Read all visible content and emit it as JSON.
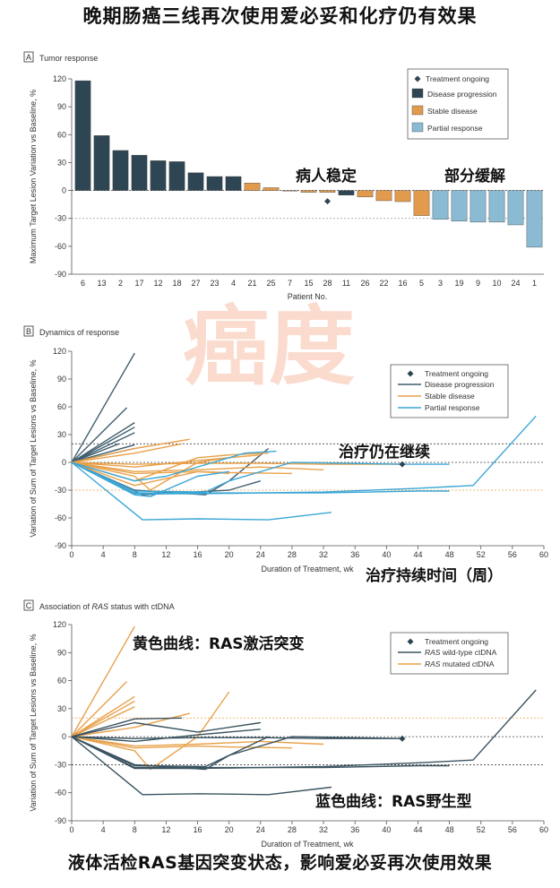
{
  "title": "晚期肠癌三线再次使用爱必妥和化疗仍有效果",
  "footer": "液体活检RAS基因突变状态，影响爱必妥再次使用效果",
  "watermark": "癌度",
  "colors": {
    "progression": "#2e4653",
    "stable": "#e29a4c",
    "partial": "#8bbad3",
    "line_progression": "#3f5e6e",
    "line_stable": "#e8a14a",
    "line_partial": "#3aa6d6",
    "line_wild": "#3a5360",
    "line_mutated": "#e8a14a",
    "marker": "#2e4653"
  },
  "panels": {
    "a": {
      "letter": "A",
      "title": "Tumor response"
    },
    "b": {
      "letter": "B",
      "title": "Dynamics of response"
    },
    "c": {
      "letter": "C",
      "title_parts": [
        "Association of ",
        "RAS",
        " status with ctDNA"
      ]
    }
  },
  "annotations": {
    "stable": "病人稳定",
    "partial": "部分缓解",
    "ongoing": "治疗仍在继续",
    "duration": "治疗持续时间（周）",
    "yellow": "黄色曲线：RAS激活突变",
    "blue": "蓝色曲线：RAS野生型"
  },
  "chart_data": [
    {
      "type": "bar",
      "panel": "A",
      "title": "Tumor response",
      "xlabel": "Patient No.",
      "ylabel": "Maximum Target Lesion Variation vs Baseline, %",
      "ylim": [
        -90,
        120
      ],
      "yticks": [
        120,
        90,
        60,
        30,
        0,
        -30,
        -60,
        -90
      ],
      "reference_lines": [
        20,
        -30
      ],
      "categories": [
        "6",
        "13",
        "2",
        "17",
        "12",
        "18",
        "27",
        "23",
        "4",
        "21",
        "25",
        "7",
        "15",
        "28",
        "11",
        "26",
        "22",
        "16",
        "5",
        "3",
        "19",
        "9",
        "10",
        "24",
        "1"
      ],
      "values": [
        118,
        59,
        43,
        38,
        32,
        31,
        19,
        15,
        15,
        8,
        3,
        0,
        -2,
        -2,
        -5,
        -7,
        -11,
        -12,
        -27,
        -31,
        -33,
        -34,
        -34,
        -37,
        -61
      ],
      "response": [
        "Disease progression",
        "Disease progression",
        "Disease progression",
        "Disease progression",
        "Disease progression",
        "Disease progression",
        "Disease progression",
        "Disease progression",
        "Disease progression",
        "Stable disease",
        "Stable disease",
        "Stable disease",
        "Stable disease",
        "Stable disease",
        "Disease progression",
        "Stable disease",
        "Stable disease",
        "Stable disease",
        "Stable disease",
        "Partial response",
        "Partial response",
        "Partial response",
        "Partial response",
        "Partial response",
        "Partial response"
      ],
      "ongoing_markers": [
        "28"
      ],
      "legend": [
        "Treatment ongoing",
        "Disease progression",
        "Stable disease",
        "Partial response"
      ],
      "legend_position": "top-right"
    },
    {
      "type": "line",
      "panel": "B",
      "title": "Dynamics of response",
      "xlabel": "Duration of Treatment, wk",
      "ylabel": "Variation of Sum of Target Lesions vs Baseline, %",
      "xlim": [
        0,
        60
      ],
      "ylim": [
        -90,
        120
      ],
      "xticks": [
        0,
        4,
        8,
        12,
        16,
        20,
        24,
        28,
        32,
        36,
        40,
        44,
        48,
        52,
        56,
        60
      ],
      "yticks": [
        120,
        90,
        60,
        30,
        0,
        -30,
        -60,
        -90
      ],
      "reference_lines": [
        20,
        0,
        -30
      ],
      "legend": [
        "Treatment ongoing",
        "Disease progression",
        "Stable disease",
        "Partial response"
      ],
      "legend_position": "top-right",
      "ongoing_marker": {
        "x": 42,
        "y": -2
      },
      "series": [
        {
          "group": "progression",
          "points": [
            [
              0,
              0
            ],
            [
              8,
              118
            ]
          ]
        },
        {
          "group": "progression",
          "points": [
            [
              0,
              0
            ],
            [
              7,
              59
            ]
          ]
        },
        {
          "group": "progression",
          "points": [
            [
              0,
              0
            ],
            [
              8,
              43
            ]
          ]
        },
        {
          "group": "progression",
          "points": [
            [
              0,
              0
            ],
            [
              8,
              38
            ]
          ]
        },
        {
          "group": "progression",
          "points": [
            [
              0,
              0
            ],
            [
              8,
              32
            ]
          ]
        },
        {
          "group": "progression",
          "points": [
            [
              0,
              0
            ],
            [
              6,
              20
            ]
          ]
        },
        {
          "group": "progression",
          "points": [
            [
              0,
              0
            ],
            [
              8,
              19
            ]
          ]
        },
        {
          "group": "progression",
          "points": [
            [
              0,
              0
            ],
            [
              8,
              15
            ]
          ]
        },
        {
          "group": "progression",
          "points": [
            [
              0,
              0
            ],
            [
              8,
              -30
            ],
            [
              17,
              -35
            ],
            [
              20,
              -20
            ],
            [
              25,
              15
            ]
          ]
        },
        {
          "group": "progression",
          "points": [
            [
              0,
              0
            ],
            [
              9,
              -35
            ],
            [
              20,
              -30
            ],
            [
              24,
              -20
            ]
          ]
        },
        {
          "group": "stable",
          "points": [
            [
              0,
              0
            ],
            [
              8,
              10
            ],
            [
              14,
              20
            ]
          ]
        },
        {
          "group": "stable",
          "points": [
            [
              0,
              0
            ],
            [
              8,
              15
            ],
            [
              15,
              25
            ]
          ]
        },
        {
          "group": "stable",
          "points": [
            [
              0,
              0
            ],
            [
              8,
              -5
            ],
            [
              16,
              2
            ],
            [
              24,
              8
            ]
          ]
        },
        {
          "group": "stable",
          "points": [
            [
              0,
              0
            ],
            [
              8,
              -10
            ],
            [
              16,
              -8
            ],
            [
              24,
              -5
            ],
            [
              32,
              -8
            ]
          ]
        },
        {
          "group": "stable",
          "points": [
            [
              0,
              0
            ],
            [
              8,
              -12
            ],
            [
              16,
              -10
            ],
            [
              20,
              -11
            ],
            [
              28,
              -12
            ]
          ]
        },
        {
          "group": "stable",
          "points": [
            [
              0,
              0
            ],
            [
              8,
              -2
            ],
            [
              16,
              -1
            ],
            [
              24,
              -1
            ],
            [
              32,
              -2
            ],
            [
              42,
              -2
            ]
          ]
        },
        {
          "group": "stable",
          "points": [
            [
              0,
              0
            ],
            [
              8,
              -20
            ],
            [
              16,
              5
            ],
            [
              20,
              8
            ],
            [
              25,
              10
            ]
          ]
        },
        {
          "group": "stable",
          "points": [
            [
              0,
              0
            ],
            [
              8,
              -15
            ],
            [
              10,
              -30
            ],
            [
              16,
              0
            ],
            [
              20,
              5
            ]
          ]
        },
        {
          "group": "stable",
          "points": [
            [
              0,
              0
            ],
            [
              8,
              -25
            ],
            [
              16,
              -10
            ],
            [
              20,
              -12
            ]
          ]
        },
        {
          "group": "partial",
          "points": [
            [
              0,
              0
            ],
            [
              8,
              -31
            ],
            [
              17,
              -32
            ],
            [
              20,
              -20
            ],
            [
              28,
              0
            ],
            [
              42,
              -2
            ],
            [
              48,
              -2
            ]
          ]
        },
        {
          "group": "partial",
          "points": [
            [
              0,
              0
            ],
            [
              8,
              -33
            ],
            [
              16,
              -33
            ],
            [
              24,
              -33
            ],
            [
              32,
              -33
            ],
            [
              44,
              -31
            ],
            [
              48,
              -31
            ]
          ]
        },
        {
          "group": "partial",
          "points": [
            [
              0,
              0
            ],
            [
              8,
              -34
            ],
            [
              16,
              -34
            ],
            [
              24,
              -33
            ],
            [
              32,
              -32
            ],
            [
              44,
              -28
            ],
            [
              51,
              -25
            ],
            [
              59,
              50
            ]
          ]
        },
        {
          "group": "partial",
          "points": [
            [
              0,
              0
            ],
            [
              8,
              -35
            ],
            [
              10,
              -37
            ],
            [
              16,
              -15
            ],
            [
              20,
              -10
            ]
          ]
        },
        {
          "group": "partial",
          "points": [
            [
              0,
              0
            ],
            [
              8,
              -20
            ],
            [
              12,
              -15
            ],
            [
              18,
              0
            ],
            [
              22,
              10
            ],
            [
              26,
              12
            ]
          ]
        },
        {
          "group": "partial",
          "points": [
            [
              0,
              0
            ],
            [
              9,
              -62
            ],
            [
              16,
              -61
            ],
            [
              25,
              -62
            ],
            [
              33,
              -54
            ]
          ]
        }
      ]
    },
    {
      "type": "line",
      "panel": "C",
      "title": "Association of RAS status with ctDNA",
      "xlabel": "Duration of Treatment, wk",
      "ylabel": "Variation of Sum of Target Lesions vs Baseline, %",
      "xlim": [
        0,
        60
      ],
      "ylim": [
        -90,
        120
      ],
      "xticks": [
        0,
        4,
        8,
        12,
        16,
        20,
        24,
        28,
        32,
        36,
        40,
        44,
        48,
        52,
        56,
        60
      ],
      "yticks": [
        120,
        90,
        60,
        30,
        0,
        -30,
        -60,
        -90
      ],
      "reference_lines": [
        20,
        0,
        -30
      ],
      "legend": [
        "Treatment ongoing",
        "RAS wild-type ctDNA",
        "RAS mutated ctDNA"
      ],
      "legend_position": "top-right",
      "ongoing_marker": {
        "x": 42,
        "y": -2
      },
      "series": [
        {
          "group": "mutated",
          "points": [
            [
              0,
              0
            ],
            [
              8,
              118
            ]
          ]
        },
        {
          "group": "mutated",
          "points": [
            [
              0,
              0
            ],
            [
              7,
              59
            ]
          ]
        },
        {
          "group": "mutated",
          "points": [
            [
              0,
              0
            ],
            [
              8,
              43
            ]
          ]
        },
        {
          "group": "mutated",
          "points": [
            [
              0,
              0
            ],
            [
              8,
              38
            ]
          ]
        },
        {
          "group": "mutated",
          "points": [
            [
              0,
              0
            ],
            [
              8,
              32
            ]
          ]
        },
        {
          "group": "mutated",
          "points": [
            [
              0,
              0
            ],
            [
              8,
              10
            ],
            [
              15,
              25
            ]
          ]
        },
        {
          "group": "mutated",
          "points": [
            [
              0,
              0
            ],
            [
              8,
              -15
            ],
            [
              10,
              -35
            ],
            [
              16,
              0
            ],
            [
              20,
              48
            ]
          ]
        },
        {
          "group": "mutated",
          "points": [
            [
              0,
              0
            ],
            [
              8,
              -10
            ],
            [
              16,
              -8
            ],
            [
              24,
              -5
            ],
            [
              32,
              -8
            ]
          ]
        },
        {
          "group": "mutated",
          "points": [
            [
              0,
              0
            ],
            [
              8,
              -12
            ],
            [
              16,
              -10
            ],
            [
              20,
              -11
            ],
            [
              28,
              -12
            ]
          ]
        },
        {
          "group": "wild",
          "points": [
            [
              0,
              0
            ],
            [
              8,
              19
            ],
            [
              14,
              20
            ]
          ]
        },
        {
          "group": "wild",
          "points": [
            [
              0,
              0
            ],
            [
              8,
              15
            ],
            [
              16,
              5
            ],
            [
              24,
              15
            ]
          ]
        },
        {
          "group": "wild",
          "points": [
            [
              0,
              0
            ],
            [
              8,
              -5
            ],
            [
              16,
              2
            ],
            [
              24,
              8
            ]
          ]
        },
        {
          "group": "wild",
          "points": [
            [
              0,
              0
            ],
            [
              8,
              -30
            ],
            [
              17,
              -35
            ],
            [
              20,
              -20
            ],
            [
              25,
              0
            ]
          ]
        },
        {
          "group": "wild",
          "points": [
            [
              0,
              0
            ],
            [
              8,
              -31
            ],
            [
              17,
              -32
            ],
            [
              20,
              -20
            ],
            [
              28,
              0
            ],
            [
              42,
              -2
            ]
          ]
        },
        {
          "group": "wild",
          "points": [
            [
              0,
              0
            ],
            [
              8,
              -33
            ],
            [
              16,
              -33
            ],
            [
              24,
              -33
            ],
            [
              32,
              -33
            ],
            [
              44,
              -31
            ],
            [
              48,
              -31
            ]
          ]
        },
        {
          "group": "wild",
          "points": [
            [
              0,
              0
            ],
            [
              8,
              -34
            ],
            [
              16,
              -34
            ],
            [
              24,
              -33
            ],
            [
              32,
              -32
            ],
            [
              44,
              -28
            ],
            [
              51,
              -25
            ],
            [
              59,
              50
            ]
          ]
        },
        {
          "group": "wild",
          "points": [
            [
              0,
              0
            ],
            [
              9,
              -62
            ],
            [
              16,
              -61
            ],
            [
              25,
              -62
            ],
            [
              33,
              -54
            ]
          ]
        },
        {
          "group": "wild",
          "points": [
            [
              0,
              0
            ],
            [
              8,
              -2
            ],
            [
              16,
              -1
            ],
            [
              24,
              -1
            ],
            [
              32,
              -2
            ],
            [
              42,
              -2
            ]
          ]
        }
      ]
    }
  ]
}
